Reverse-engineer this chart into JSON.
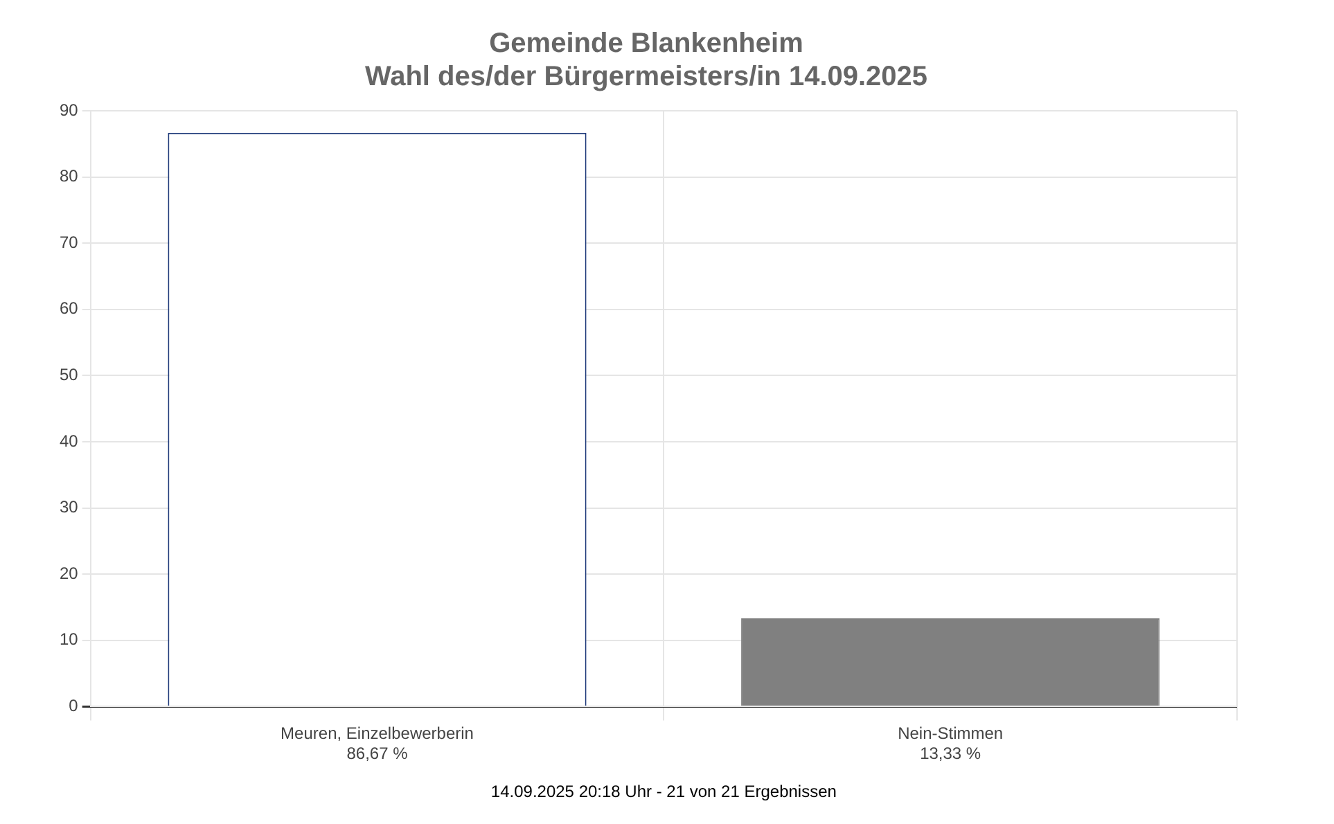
{
  "chart_data": {
    "type": "bar",
    "title": "Gemeinde Blankenheim",
    "subtitle": "Wahl des/der Bürgermeisters/in 14.09.2025",
    "categories": [
      "Meuren, Einzelbewerberin",
      "Nein-Stimmen"
    ],
    "values": [
      86.67,
      13.33
    ],
    "value_labels": [
      "86,67 %",
      "13,33 %"
    ],
    "colors": [
      "#ffffff",
      "#808080"
    ],
    "ylim": [
      0,
      90
    ],
    "yticks": [
      0,
      10,
      20,
      30,
      40,
      50,
      60,
      70,
      80,
      90
    ],
    "grid": true,
    "legend": false,
    "annotations": [
      "14.09.2025 20:18 Uhr - 21 von 21 Ergebnissen"
    ]
  }
}
